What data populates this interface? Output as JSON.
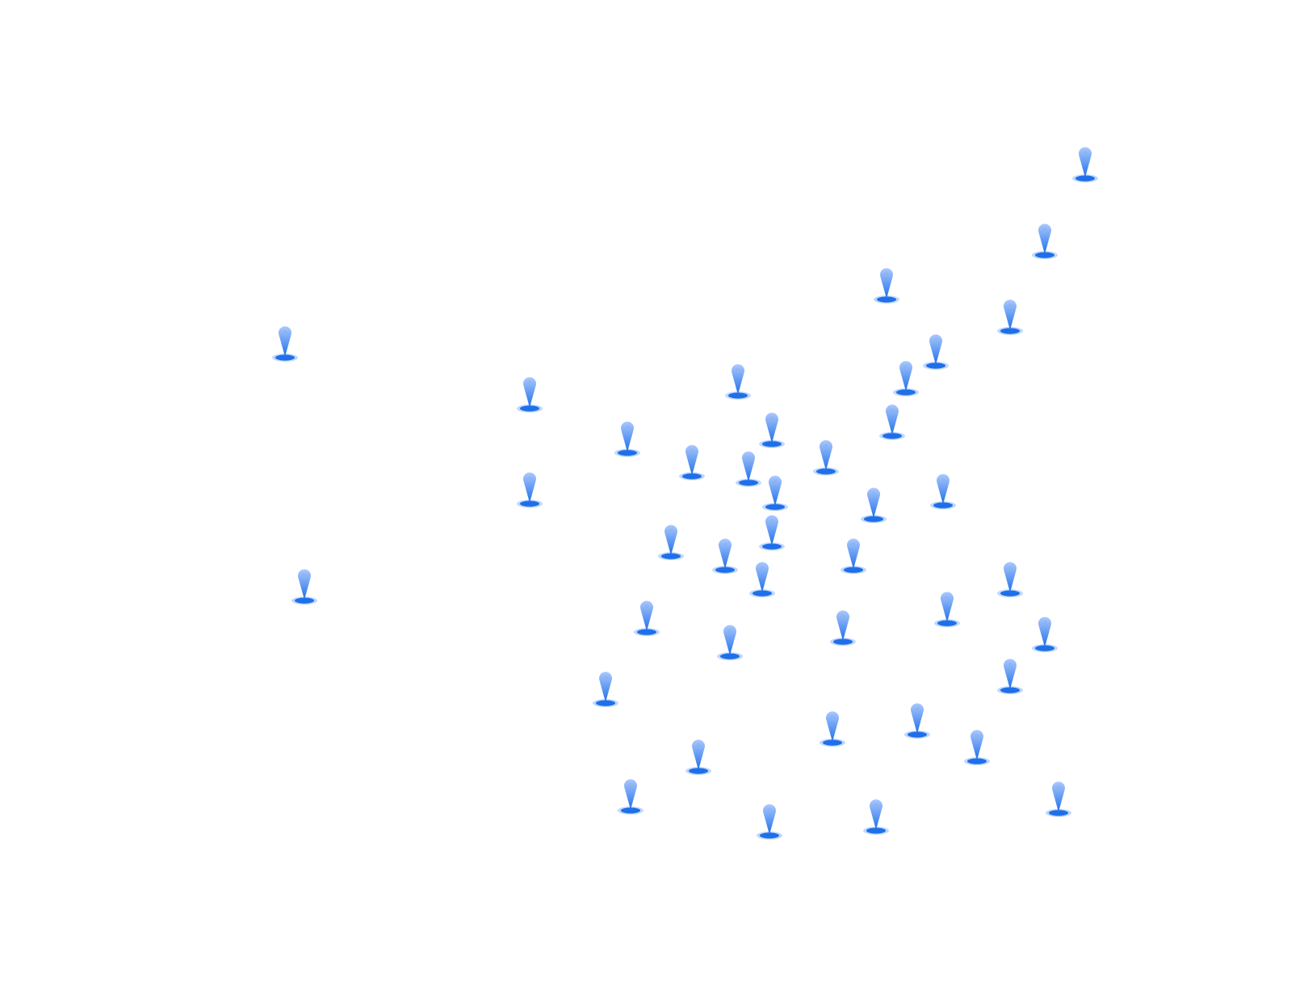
{
  "map": {
    "background": "#ffffff",
    "marker_icon": "map-pin-icon",
    "marker_count": 41,
    "colors": {
      "pin_light": "#a9c8ff",
      "pin_dark": "#1f6fe8",
      "halo": "#b8d4ff"
    }
  }
}
